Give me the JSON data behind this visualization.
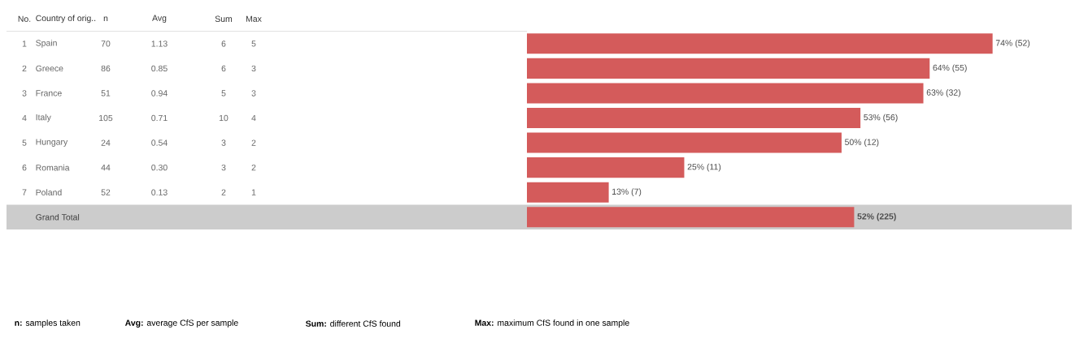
{
  "chart_data": {
    "type": "bar",
    "orientation": "horizontal",
    "color": "#d45b5b",
    "categories": [
      "Spain",
      "Greece",
      "France",
      "Italy",
      "Hungary",
      "Romania",
      "Poland",
      "Grand Total"
    ],
    "values": [
      74,
      64,
      63,
      53,
      50,
      25,
      13,
      52
    ],
    "value_labels": [
      "74% (52)",
      "64% (55)",
      "63% (32)",
      "53% (56)",
      "50% (12)",
      "25% (11)",
      "13% (7)",
      "52% (225)"
    ],
    "annotations": [
      "No.",
      "Country of orig..",
      "n",
      "Avg",
      "Sum",
      "Max",
      "1",
      "70",
      "1.13",
      "6",
      "5",
      "2",
      "86",
      "0.85",
      "6",
      "3",
      "3",
      "51",
      "0.94",
      "5",
      "3",
      "4",
      "105",
      "0.71",
      "10",
      "4",
      "5",
      "24",
      "0.54",
      "3",
      "2",
      "6",
      "44",
      "0.30",
      "3",
      "2",
      "7",
      "52",
      "0.13",
      "2",
      "1",
      "**n:** samples taken",
      "**Avg:** average CfS per sample",
      "**Sum:** different CfS found",
      "**Max:** maximum CfS found in one sample"
    ]
  }
}
